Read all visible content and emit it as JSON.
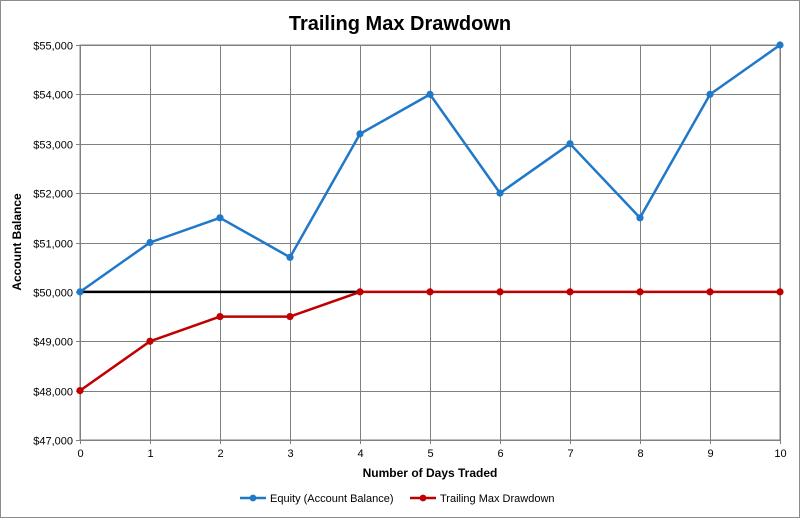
{
  "chart_data": {
    "type": "line",
    "title": "Trailing Max Drawdown",
    "xlabel": "Number of Days Traded",
    "ylabel": "Account Balance",
    "x": [
      0,
      1,
      2,
      3,
      4,
      5,
      6,
      7,
      8,
      9,
      10
    ],
    "xlim": [
      0,
      10
    ],
    "ylim": [
      47000,
      55000
    ],
    "y_ticks": [
      "$47,000",
      "$48,000",
      "$49,000",
      "$50,000",
      "$51,000",
      "$52,000",
      "$53,000",
      "$54,000",
      "$55,000"
    ],
    "grid": true,
    "legend_position": "bottom",
    "series": [
      {
        "name": "Equity (Account Balance)",
        "color": "#1f78c8",
        "values": [
          50000,
          51000,
          51500,
          50700,
          53200,
          54000,
          52000,
          53000,
          51500,
          54000,
          55000
        ]
      },
      {
        "name": "Trailing Max Drawdown",
        "color": "#c00000",
        "values": [
          48000,
          49000,
          49500,
          49500,
          50000,
          50000,
          50000,
          50000,
          50000,
          50000,
          50000
        ]
      }
    ],
    "reference_line": {
      "color": "#000000",
      "y": 50000,
      "x": [
        0,
        4
      ]
    }
  }
}
